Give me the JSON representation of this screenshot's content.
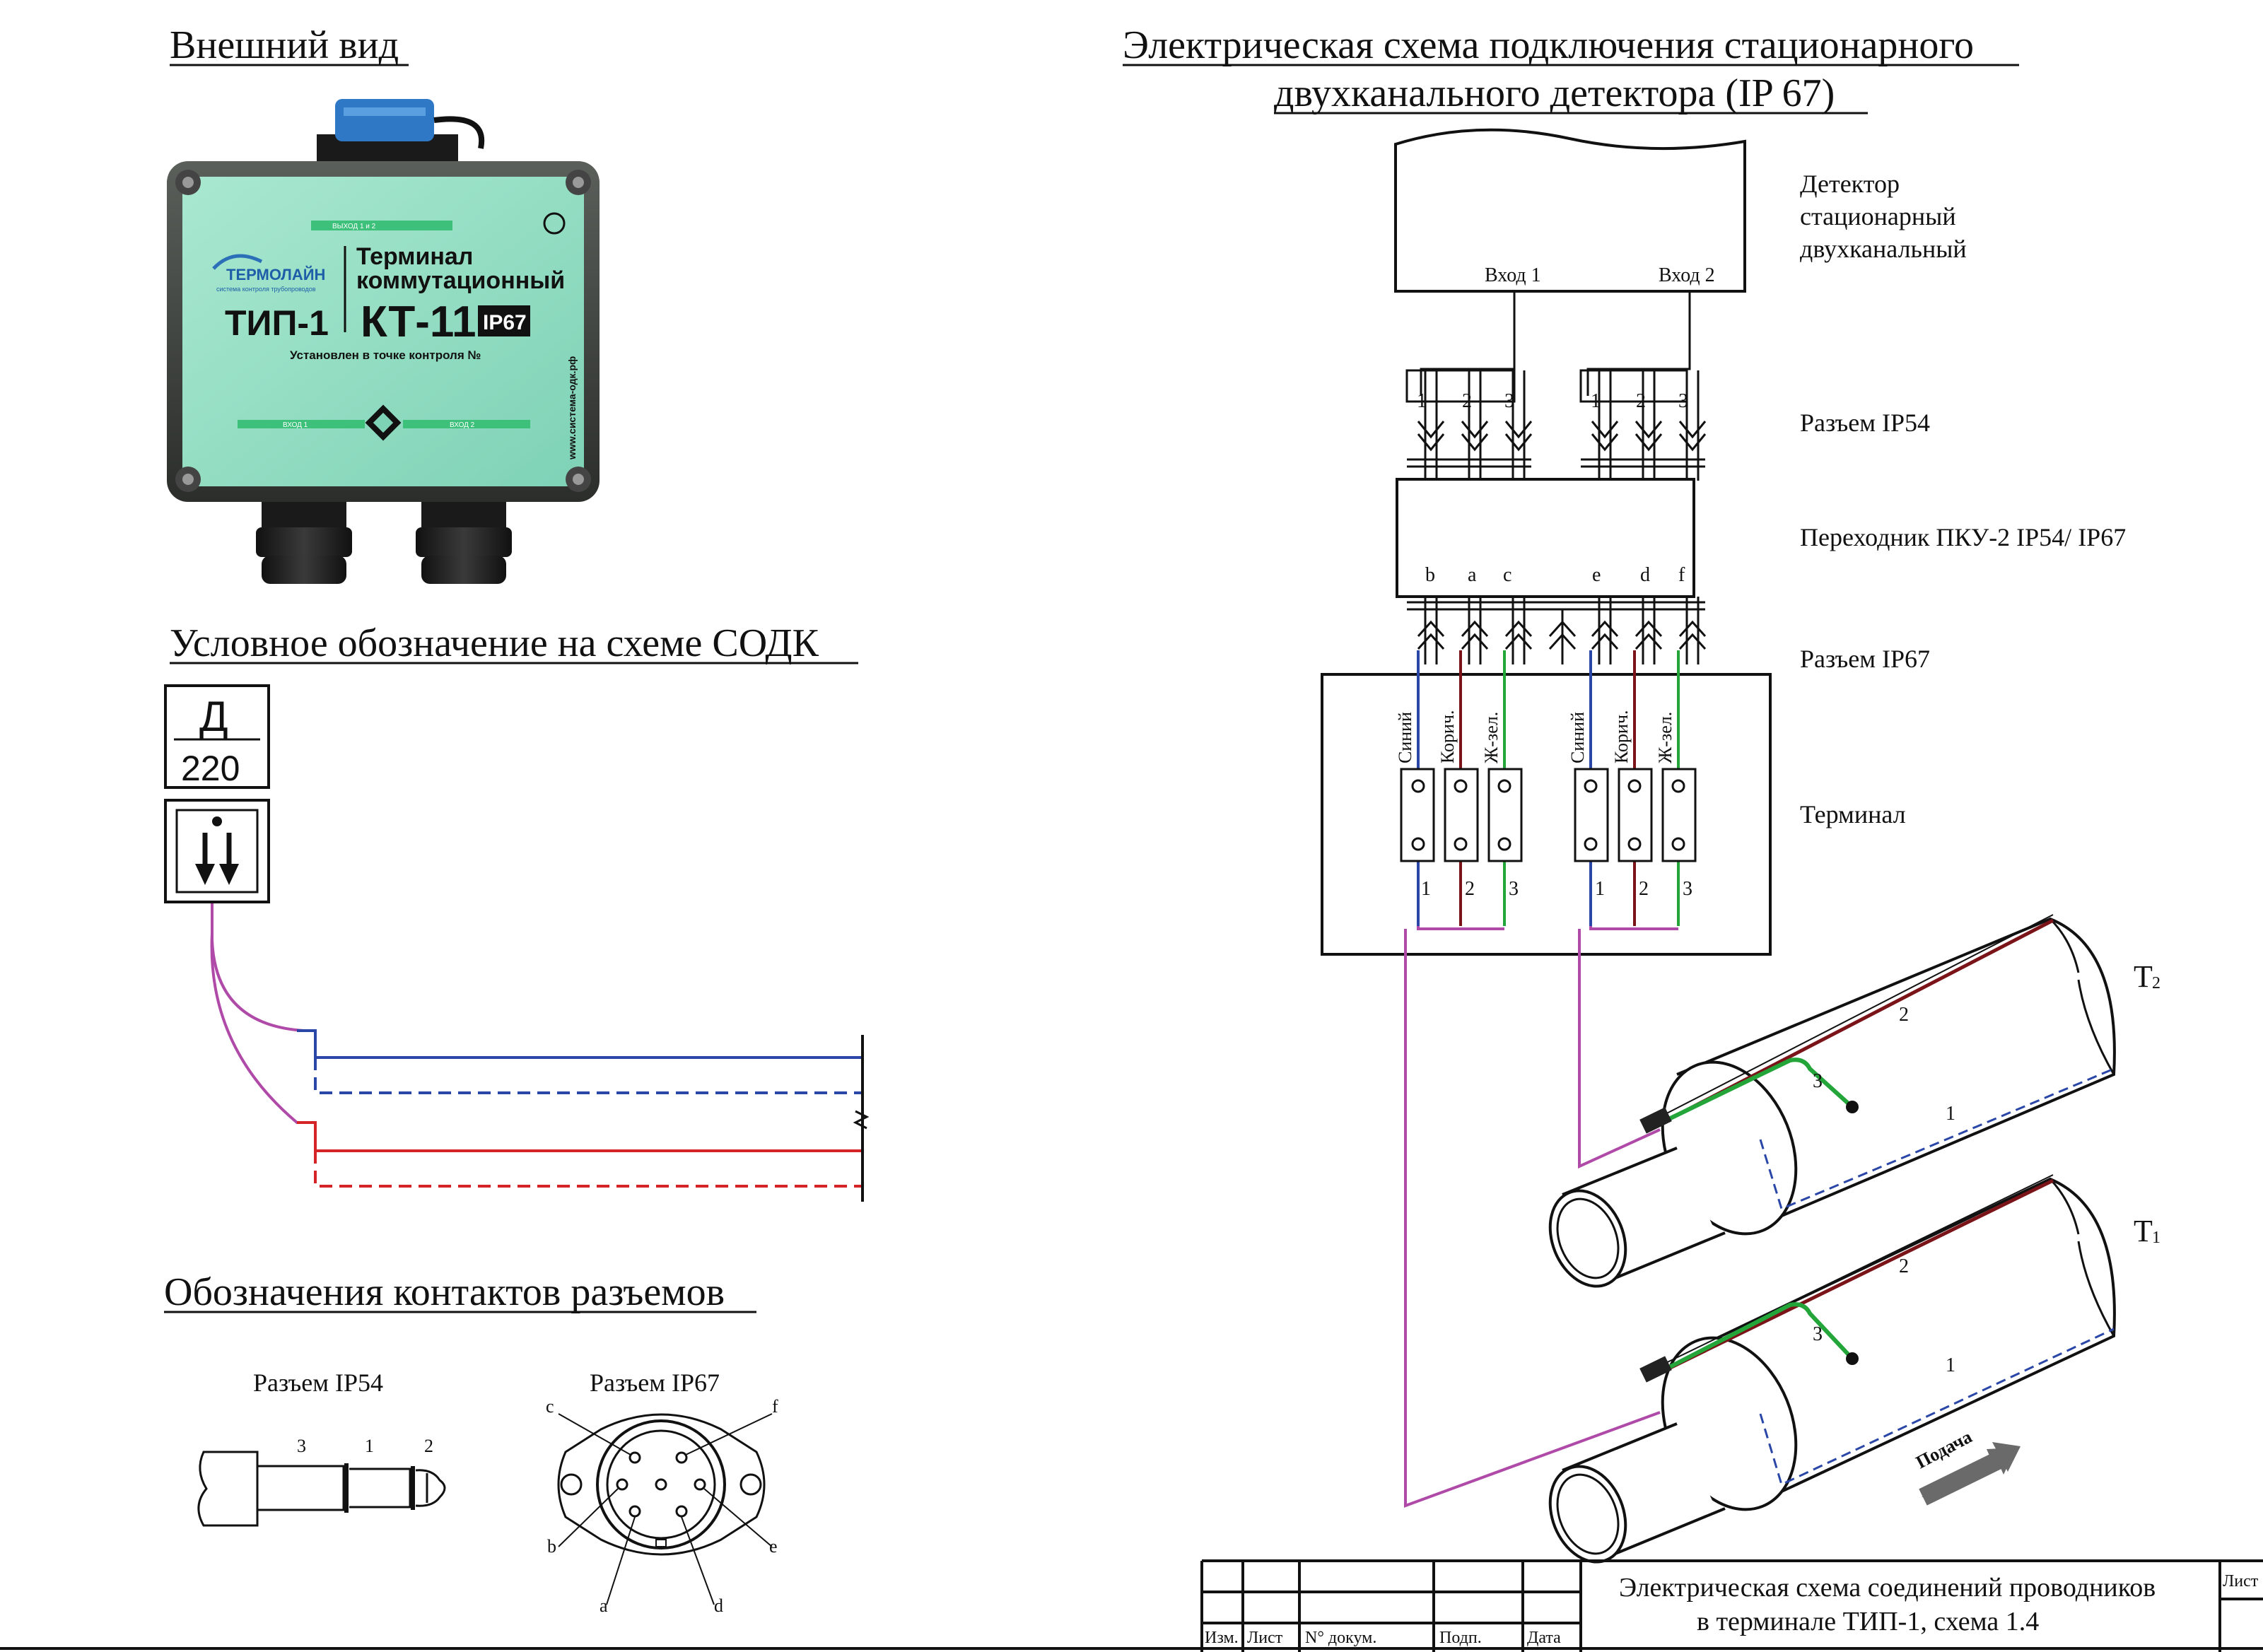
{
  "left": {
    "appearance_title": "Внешний вид",
    "device": {
      "brand": "ТЕРМОЛАЙН",
      "brand_sub": "система контроля трубопроводов",
      "title_line1": "Терминал",
      "title_line2": "коммутационный",
      "type": "ТИП-1",
      "model": "КТ-11",
      "rating": "IP67",
      "installed_text": "Установлен в точке контроля №",
      "side_text": "www.система-одк.рф",
      "top_label": "ВЫХОД 1 и 2",
      "bottom_label_left": "ВХОД 1",
      "bottom_label_right": "ВХОД 2"
    },
    "symbol_title": "Условное обозначение на схеме СОДК",
    "symbol": {
      "letter": "Д",
      "number": "220"
    },
    "contacts_title": "Обозначения контактов разъемов",
    "ip54": {
      "title": "Разъем IP54",
      "pins": [
        "3",
        "1",
        "2"
      ]
    },
    "ip67": {
      "title": "Разъем IP67",
      "pins": [
        "c",
        "f",
        "b",
        "e",
        "a",
        "d"
      ]
    }
  },
  "right": {
    "title_line1": "Электрическая схема подключения стационарного",
    "title_line2": "двухканального детектора (IP 67)",
    "detector": {
      "label_line1": "Детектор",
      "label_line2": "стационарный",
      "label_line3": "двухканальный",
      "input1": "Вход 1",
      "input2": "Вход 2"
    },
    "ip54_connector": "Разъем IP54",
    "adapter": "Переходник ПКУ-2   IP54/ IP67",
    "ip67_connector": "Разъем IP67",
    "terminal": "Терминал",
    "pin_numbers": [
      "1",
      "2",
      "3",
      "1",
      "2",
      "3"
    ],
    "adapter_letters": [
      "b",
      "a",
      "c",
      "e",
      "d",
      "f"
    ],
    "wire_labels": [
      "Синий",
      "Корич.",
      "Ж-зел.",
      "Синий",
      "Корич.",
      "Ж-зел."
    ],
    "terminal_numbers": [
      "1",
      "2",
      "3",
      "1",
      "2",
      "3"
    ],
    "pipe2": {
      "label": "T",
      "sub": "2",
      "wires": [
        "2",
        "3",
        "1"
      ]
    },
    "pipe1": {
      "label": "T",
      "sub": "1",
      "wires": [
        "2",
        "3",
        "1"
      ]
    },
    "flow": "Подача"
  },
  "stamp": {
    "headers": [
      "Изм.",
      "Лист",
      "N° докум.",
      "Подп.",
      "Дата"
    ],
    "title_line1": "Электрическая схема соединений проводников",
    "title_line2": "в терминале ТИП-1, схема 1.4",
    "sheet": "Лист"
  },
  "colors": {
    "blue": "#2a47a8",
    "brown": "#7a1418",
    "green": "#23a53a",
    "magenta": "#b04aa8",
    "red": "#d42428",
    "device_green": "#9fe0c8"
  }
}
